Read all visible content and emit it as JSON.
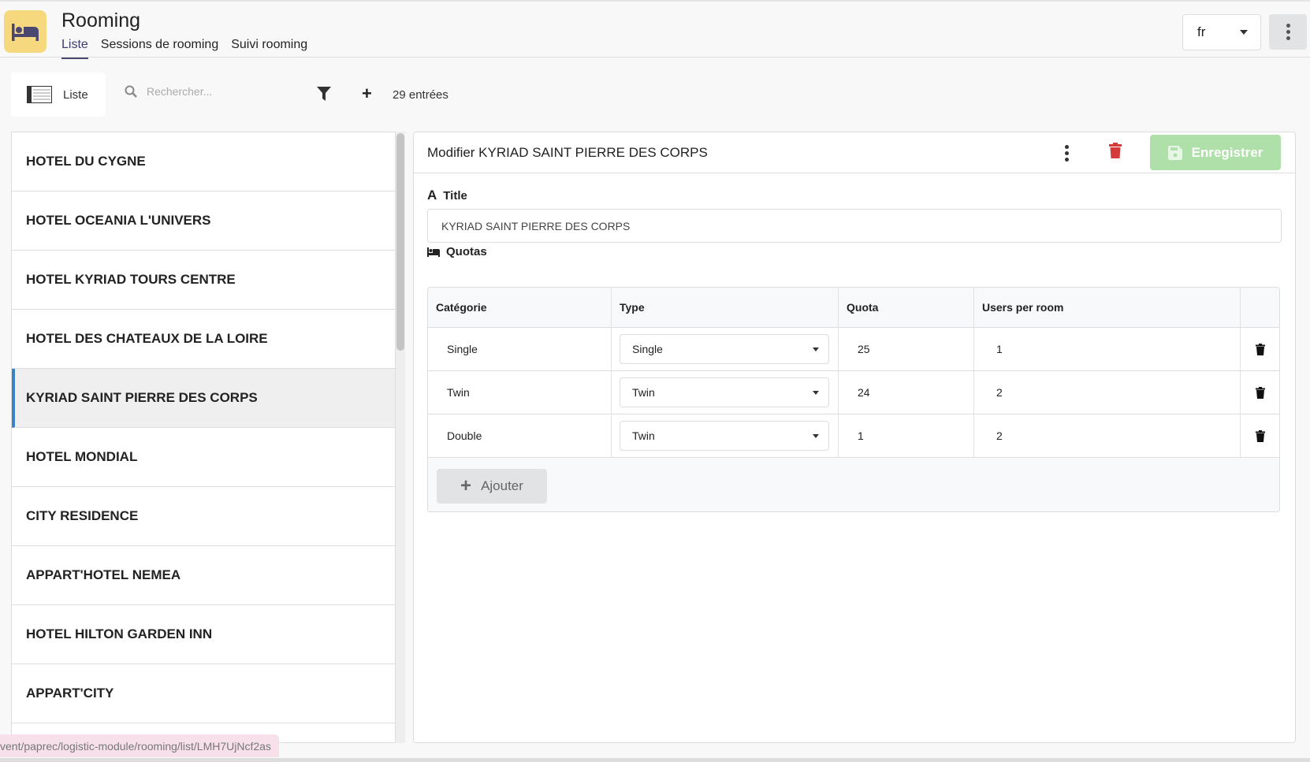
{
  "header": {
    "title": "Rooming",
    "tabs": [
      {
        "label": "Liste",
        "active": true
      },
      {
        "label": "Sessions de rooming"
      },
      {
        "label": "Suivi rooming"
      }
    ],
    "language": "fr",
    "logo_color": "#f6d87e"
  },
  "toolbar": {
    "view_label": "Liste",
    "search_placeholder": "Rechercher...",
    "count": "29 entrées"
  },
  "list": {
    "items": [
      "HOTEL DU CYGNE",
      "HOTEL OCEANIA L'UNIVERS",
      "HOTEL KYRIAD TOURS CENTRE",
      "HOTEL DES CHATEAUX DE LA LOIRE",
      "KYRIAD SAINT PIERRE DES CORPS",
      "HOTEL MONDIAL",
      "CITY RESIDENCE",
      "APPART'HOTEL NEMEA",
      "HOTEL HILTON GARDEN INN",
      "APPART'CITY"
    ],
    "selected_index": 4,
    "accent": "#3b82c4"
  },
  "editor": {
    "heading": "Modifier KYRIAD SAINT PIERRE DES CORPS",
    "save_label": "Enregistrer",
    "save_color": "#b0e0aa",
    "delete_color": "#d63b3b",
    "title_label": "Title",
    "title_value": "KYRIAD SAINT PIERRE DES CORPS",
    "quotas_label": "Quotas",
    "columns": [
      "Catégorie",
      "Type",
      "Quota",
      "Users per room"
    ],
    "rows": [
      {
        "category": "Single",
        "type": "Single",
        "quota": "25",
        "users": "1"
      },
      {
        "category": "Twin",
        "type": "Twin",
        "quota": "24",
        "users": "2"
      },
      {
        "category": "Double",
        "type": "Twin",
        "quota": "1",
        "users": "2"
      }
    ],
    "add_label": "Ajouter"
  },
  "status_url": "vent/paprec/logistic-module/rooming/list/LMH7UjNcf2as"
}
